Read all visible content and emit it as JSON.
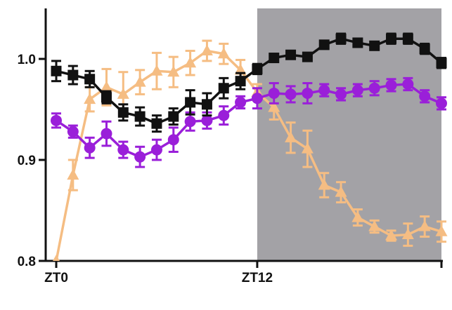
{
  "chart_data": {
    "type": "line",
    "title": "",
    "xlabel": "",
    "ylabel": "",
    "xlim": [
      0,
      23
    ],
    "ylim": [
      0.8,
      1.05
    ],
    "x_ticks": [
      {
        "value": 0,
        "label": "ZT0"
      },
      {
        "value": 12,
        "label": "ZT12"
      },
      {
        "value": 23,
        "label": ""
      }
    ],
    "y_ticks": [
      {
        "value": 0.8,
        "label": "0.8"
      },
      {
        "value": 0.9,
        "label": "0.9"
      },
      {
        "value": 1.0,
        "label": "1.0"
      }
    ],
    "dark_phase": {
      "start": 12,
      "end": 23,
      "color": "#a3a2a6"
    },
    "series": [
      {
        "marker": "square",
        "color": "#111111",
        "x": [
          0,
          1,
          2,
          3,
          4,
          5,
          6,
          7,
          8,
          9,
          10,
          11,
          12,
          13,
          14,
          15,
          16,
          17,
          18,
          19,
          20,
          21,
          22,
          23
        ],
        "y": [
          0.988,
          0.984,
          0.98,
          0.962,
          0.947,
          0.943,
          0.936,
          0.943,
          0.957,
          0.955,
          0.971,
          0.978,
          0.99,
          1.001,
          1.004,
          1.002,
          1.014,
          1.02,
          1.016,
          1.013,
          1.02,
          1.02,
          1.01,
          0.996
        ],
        "err": [
          0.01,
          0.009,
          0.008,
          0.006,
          0.008,
          0.009,
          0.008,
          0.008,
          0.012,
          0.011,
          0.01,
          0.008,
          0.005,
          0.004,
          0.004,
          0.004,
          0.004,
          0.005,
          0.004,
          0.004,
          0.005,
          0.005,
          0.005,
          0.005
        ]
      },
      {
        "marker": "circle",
        "color": "#9a1fd9",
        "x": [
          0,
          1,
          2,
          3,
          4,
          5,
          6,
          7,
          8,
          9,
          10,
          11,
          12,
          13,
          14,
          15,
          16,
          17,
          18,
          19,
          20,
          21,
          22,
          23
        ],
        "y": [
          0.939,
          0.928,
          0.912,
          0.926,
          0.91,
          0.903,
          0.91,
          0.92,
          0.938,
          0.939,
          0.944,
          0.957,
          0.961,
          0.966,
          0.965,
          0.966,
          0.969,
          0.965,
          0.969,
          0.971,
          0.974,
          0.975,
          0.963,
          0.956
        ],
        "err": [
          0.007,
          0.006,
          0.01,
          0.012,
          0.008,
          0.01,
          0.01,
          0.012,
          0.009,
          0.008,
          0.009,
          0.006,
          0.01,
          0.01,
          0.008,
          0.01,
          0.006,
          0.006,
          0.006,
          0.007,
          0.006,
          0.006,
          0.006,
          0.006
        ]
      },
      {
        "marker": "triangle",
        "color": "#f5bd83",
        "x": [
          0,
          1,
          2,
          3,
          4,
          5,
          6,
          7,
          8,
          9,
          10,
          11,
          12,
          13,
          14,
          15,
          16,
          17,
          18,
          19,
          20,
          21,
          22,
          23
        ],
        "y": [
          0.8,
          0.885,
          0.96,
          0.972,
          0.965,
          0.977,
          0.988,
          0.987,
          0.996,
          1.008,
          1.005,
          0.989,
          0.967,
          0.952,
          0.922,
          0.911,
          0.875,
          0.868,
          0.843,
          0.834,
          0.825,
          0.826,
          0.834,
          0.829
        ],
        "err": [
          0.0,
          0.015,
          0.012,
          0.018,
          0.022,
          0.012,
          0.018,
          0.015,
          0.012,
          0.01,
          0.01,
          0.01,
          0.008,
          0.012,
          0.015,
          0.018,
          0.012,
          0.01,
          0.008,
          0.006,
          0.005,
          0.011,
          0.01,
          0.01
        ]
      }
    ]
  }
}
